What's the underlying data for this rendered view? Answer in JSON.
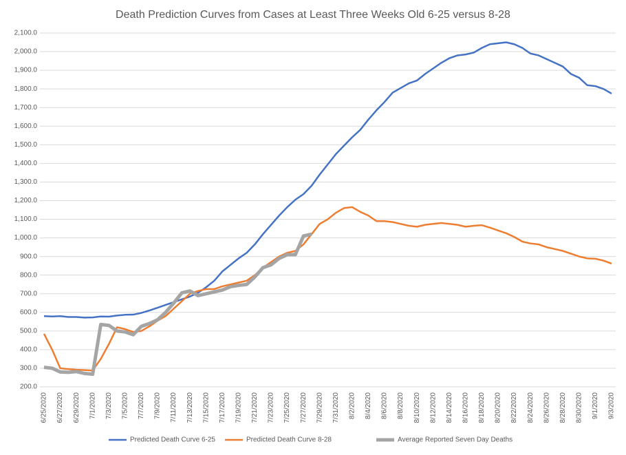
{
  "chart_data": {
    "type": "line",
    "title": "Death Prediction Curves from Cases at Least Three Weeks Old 6-25 versus 8-28",
    "categories": [
      "6/25/2020",
      null,
      "6/27/2020",
      null,
      "6/29/2020",
      null,
      "7/1/2020",
      null,
      "7/3/2020",
      null,
      "7/5/2020",
      null,
      "7/7/2020",
      null,
      "7/9/2020",
      null,
      "7/11/2020",
      null,
      "7/13/2020",
      null,
      "7/15/2020",
      null,
      "7/17/2020",
      null,
      "7/19/2020",
      null,
      "7/21/2020",
      null,
      "7/23/2020",
      null,
      "7/25/2020",
      null,
      "7/27/2020",
      null,
      "7/29/2020",
      null,
      "7/31/2020",
      null,
      "8/2/2020",
      null,
      "8/4/2020",
      null,
      "8/6/2020",
      null,
      "8/8/2020",
      null,
      "8/10/2020",
      null,
      "8/12/2020",
      null,
      "8/14/2020",
      null,
      "8/16/2020",
      null,
      "8/18/2020",
      null,
      "8/20/2020",
      null,
      "8/22/2020",
      null,
      "8/24/2020",
      null,
      "8/26/2020",
      null,
      "8/28/2020",
      null,
      "8/30/2020",
      null,
      "9/1/2020",
      null,
      "9/3/2020"
    ],
    "series": [
      {
        "name": "Predicted Death Curve 6-25",
        "color": "#4472c4",
        "values": [
          580,
          578,
          580,
          575,
          575,
          572,
          573,
          578,
          577,
          583,
          587,
          588,
          597,
          610,
          625,
          640,
          655,
          670,
          685,
          705,
          735,
          770,
          820,
          855,
          890,
          920,
          965,
          1020,
          1070,
          1120,
          1165,
          1205,
          1235,
          1280,
          1340,
          1395,
          1450,
          1495,
          1540,
          1580,
          1635,
          1685,
          1730,
          1780,
          1805,
          1830,
          1845,
          1880,
          1910,
          1940,
          1965,
          1980,
          1985,
          1995,
          2020,
          2040,
          2045,
          2050,
          2040,
          2020,
          1990,
          1980,
          1960,
          1940,
          1920,
          1880,
          1860,
          1820,
          1815,
          1800,
          1775
        ]
      },
      {
        "name": "Predicted Death Curve 8-28",
        "color": "#ed7d31",
        "values": [
          485,
          400,
          300,
          295,
          292,
          290,
          288,
          350,
          430,
          520,
          510,
          495,
          500,
          525,
          555,
          580,
          620,
          660,
          700,
          715,
          725,
          725,
          740,
          750,
          760,
          770,
          800,
          840,
          870,
          900,
          920,
          930,
          965,
          1020,
          1075,
          1100,
          1135,
          1160,
          1165,
          1140,
          1120,
          1090,
          1090,
          1085,
          1075,
          1065,
          1060,
          1070,
          1075,
          1080,
          1075,
          1070,
          1060,
          1065,
          1068,
          1055,
          1040,
          1025,
          1005,
          980,
          970,
          965,
          950,
          940,
          930,
          915,
          900,
          890,
          888,
          878,
          862
        ]
      },
      {
        "name": "Average Reported Seven Day Deaths",
        "color": "#a5a5a5",
        "values": [
          305,
          300,
          280,
          278,
          282,
          272,
          268,
          535,
          530,
          500,
          495,
          480,
          525,
          540,
          560,
          600,
          650,
          705,
          715,
          690,
          700,
          710,
          720,
          738,
          745,
          750,
          790,
          840,
          855,
          890,
          910,
          910,
          1010,
          1020,
          null,
          null,
          null,
          null,
          null,
          null,
          null,
          null,
          null,
          null,
          null,
          null,
          null,
          null,
          null,
          null,
          null,
          null,
          null,
          null,
          null,
          null,
          null,
          null,
          null,
          null,
          null,
          null,
          null,
          null,
          null,
          null,
          null,
          null,
          null,
          null,
          null
        ]
      }
    ],
    "ylim": [
      200,
      2100
    ],
    "yticks": [
      {
        "value": 200,
        "label": "200.0"
      },
      {
        "value": 300,
        "label": "300.0"
      },
      {
        "value": 400,
        "label": "400.0"
      },
      {
        "value": 500,
        "label": "500.0"
      },
      {
        "value": 600,
        "label": "600.0"
      },
      {
        "value": 700,
        "label": "700.0"
      },
      {
        "value": 800,
        "label": "800.0"
      },
      {
        "value": 900,
        "label": "900.0"
      },
      {
        "value": 1000,
        "label": "1,000.0"
      },
      {
        "value": 1100,
        "label": "1,100.0"
      },
      {
        "value": 1200,
        "label": "1,200.0"
      },
      {
        "value": 1300,
        "label": "1,300.0"
      },
      {
        "value": 1400,
        "label": "1,400.0"
      },
      {
        "value": 1500,
        "label": "1,500.0"
      },
      {
        "value": 1600,
        "label": "1,600.0"
      },
      {
        "value": 1700,
        "label": "1,700.0"
      },
      {
        "value": 1800,
        "label": "1,800.0"
      },
      {
        "value": 1900,
        "label": "1,900.0"
      },
      {
        "value": 2000,
        "label": "2,000.0"
      },
      {
        "value": 2100,
        "label": "2,100.0"
      }
    ],
    "grid": true,
    "legend": "bottom"
  }
}
